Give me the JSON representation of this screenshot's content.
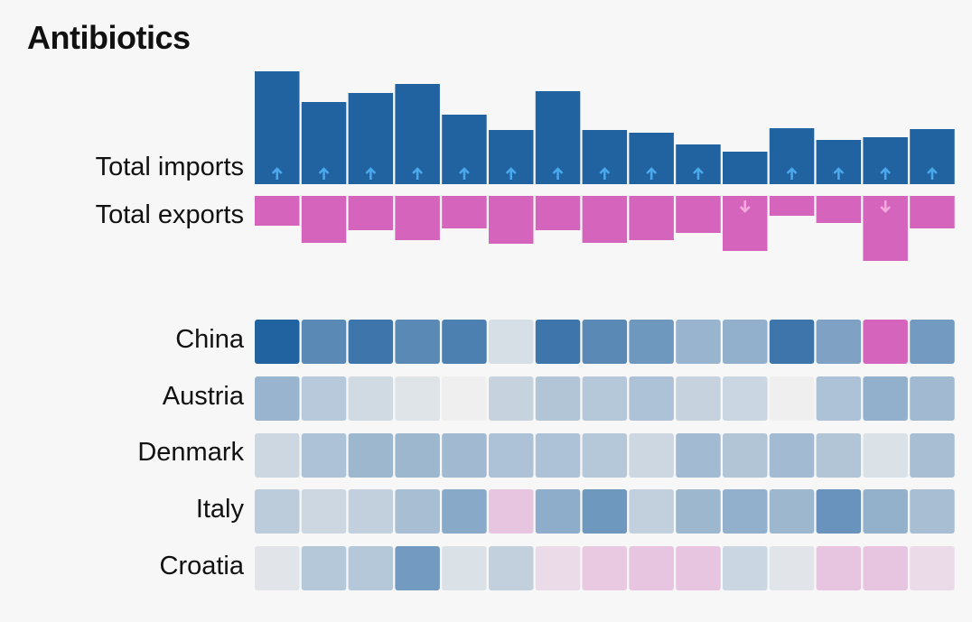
{
  "title": "Antibiotics",
  "chart_data": {
    "type": "bar",
    "title": "Antibiotics",
    "periods": 15,
    "series": [
      {
        "name": "Total imports",
        "values": [
          125,
          91,
          101,
          111,
          77,
          60,
          103,
          60,
          57,
          44,
          36,
          62,
          49,
          52,
          61
        ],
        "trend": [
          "up",
          "up",
          "up",
          "up",
          "up",
          "up",
          "up",
          "up",
          "up",
          "up",
          "none",
          "up",
          "up",
          "up",
          "up"
        ],
        "color": "#2162a0"
      },
      {
        "name": "Total exports",
        "values": [
          33,
          52,
          38,
          49,
          36,
          53,
          38,
          52,
          49,
          41,
          61,
          22,
          30,
          72,
          36
        ],
        "trend": [
          "none",
          "none",
          "none",
          "none",
          "none",
          "none",
          "none",
          "none",
          "none",
          "none",
          "down",
          "none",
          "none",
          "down",
          "none"
        ],
        "color": "#d464bc"
      }
    ],
    "heatmap": {
      "rows": [
        {
          "name": "China",
          "values": [
            1.0,
            0.72,
            0.86,
            0.72,
            0.79,
            0.12,
            0.86,
            0.72,
            0.62,
            0.42,
            0.45,
            0.86,
            0.55,
            -1.0,
            0.6
          ]
        },
        {
          "name": "Austria",
          "values": [
            0.42,
            0.27,
            0.15,
            0.08,
            0.0,
            0.2,
            0.3,
            0.28,
            0.32,
            0.2,
            0.18,
            0.0,
            0.32,
            0.45,
            0.38
          ]
        },
        {
          "name": "Denmark",
          "values": [
            0.17,
            0.32,
            0.4,
            0.4,
            0.38,
            0.32,
            0.32,
            0.28,
            0.17,
            0.37,
            0.3,
            0.37,
            0.3,
            0.1,
            0.35
          ]
        },
        {
          "name": "Italy",
          "values": [
            0.25,
            0.17,
            0.22,
            0.35,
            0.5,
            -0.3,
            0.47,
            0.62,
            0.22,
            0.4,
            0.45,
            0.4,
            0.65,
            0.44,
            0.35
          ]
        },
        {
          "name": "Croatia",
          "values": [
            0.07,
            0.28,
            0.28,
            0.6,
            0.1,
            0.22,
            -0.15,
            -0.27,
            -0.3,
            -0.3,
            0.18,
            0.07,
            -0.3,
            -0.3,
            -0.15
          ]
        }
      ],
      "positive_color": "#2162a0",
      "negative_color": "#d464bc",
      "neutral_color": "#efefef"
    },
    "legend": "none",
    "grid": false
  }
}
